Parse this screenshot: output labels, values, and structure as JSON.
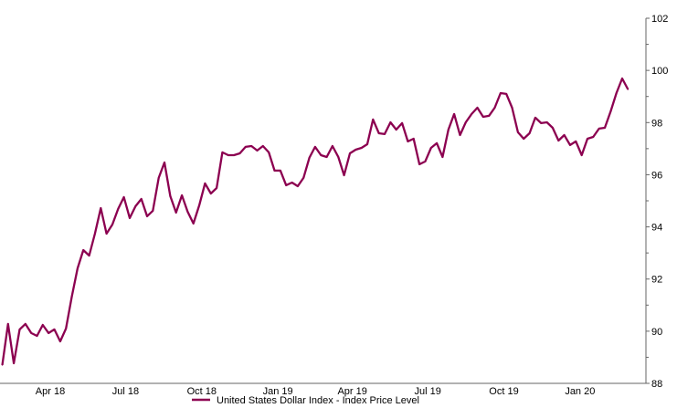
{
  "chart_data": {
    "type": "line",
    "title": "",
    "xlabel": "",
    "ylabel": "",
    "ylim": [
      88,
      102
    ],
    "yticks": [
      88,
      90,
      92,
      94,
      96,
      98,
      100,
      102
    ],
    "y_axis_side": "right",
    "grid": false,
    "legend_placement": "bottom",
    "xticks": [
      {
        "date": "2018-04-01",
        "label": "Apr 18"
      },
      {
        "date": "2018-07-01",
        "label": "Jul 18"
      },
      {
        "date": "2018-10-01",
        "label": "Oct 18"
      },
      {
        "date": "2019-01-01",
        "label": "Jan 19"
      },
      {
        "date": "2019-04-01",
        "label": "Apr 19"
      },
      {
        "date": "2019-07-01",
        "label": "Jul 19"
      },
      {
        "date": "2019-10-01",
        "label": "Oct 19"
      },
      {
        "date": "2020-01-01",
        "label": "Jan 20"
      }
    ],
    "series": [
      {
        "name": "United States Dollar Index - Index Price Level",
        "color": "#8c0050",
        "x": [
          "2018-02-02",
          "2018-02-09",
          "2018-02-16",
          "2018-02-23",
          "2018-03-02",
          "2018-03-09",
          "2018-03-16",
          "2018-03-23",
          "2018-03-30",
          "2018-04-06",
          "2018-04-13",
          "2018-04-20",
          "2018-04-27",
          "2018-05-04",
          "2018-05-11",
          "2018-05-18",
          "2018-05-25",
          "2018-06-01",
          "2018-06-08",
          "2018-06-15",
          "2018-06-22",
          "2018-06-29",
          "2018-07-06",
          "2018-07-13",
          "2018-07-20",
          "2018-07-27",
          "2018-08-03",
          "2018-08-10",
          "2018-08-17",
          "2018-08-24",
          "2018-08-31",
          "2018-09-07",
          "2018-09-14",
          "2018-09-21",
          "2018-09-28",
          "2018-10-05",
          "2018-10-12",
          "2018-10-19",
          "2018-10-26",
          "2018-11-02",
          "2018-11-09",
          "2018-11-16",
          "2018-11-23",
          "2018-11-30",
          "2018-12-07",
          "2018-12-14",
          "2018-12-21",
          "2018-12-28",
          "2019-01-04",
          "2019-01-11",
          "2019-01-18",
          "2019-01-25",
          "2019-02-01",
          "2019-02-08",
          "2019-02-15",
          "2019-02-22",
          "2019-03-01",
          "2019-03-08",
          "2019-03-15",
          "2019-03-22",
          "2019-03-29",
          "2019-04-05",
          "2019-04-12",
          "2019-04-19",
          "2019-04-26",
          "2019-05-03",
          "2019-05-10",
          "2019-05-17",
          "2019-05-24",
          "2019-05-31",
          "2019-06-07",
          "2019-06-14",
          "2019-06-21",
          "2019-06-28",
          "2019-07-05",
          "2019-07-12",
          "2019-07-19",
          "2019-07-26",
          "2019-08-02",
          "2019-08-09",
          "2019-08-16",
          "2019-08-23",
          "2019-08-30",
          "2019-09-06",
          "2019-09-13",
          "2019-09-20",
          "2019-09-27",
          "2019-10-04",
          "2019-10-11",
          "2019-10-18",
          "2019-10-25",
          "2019-11-01",
          "2019-11-08",
          "2019-11-15",
          "2019-11-22",
          "2019-11-29",
          "2019-12-06",
          "2019-12-13",
          "2019-12-20",
          "2019-12-27",
          "2020-01-03",
          "2020-01-10",
          "2020-01-17",
          "2020-01-24",
          "2020-01-31",
          "2020-02-07",
          "2020-02-14",
          "2020-02-21",
          "2020-02-28"
        ],
        "values": [
          88.7,
          90.28,
          88.77,
          90.07,
          90.28,
          89.93,
          89.82,
          90.24,
          89.93,
          90.07,
          89.61,
          90.1,
          91.33,
          92.41,
          93.11,
          92.9,
          93.74,
          94.72,
          93.74,
          94.09,
          94.69,
          95.14,
          94.34,
          94.79,
          95.07,
          94.41,
          94.62,
          95.88,
          96.47,
          95.18,
          94.55,
          95.21,
          94.58,
          94.13,
          94.83,
          95.67,
          95.28,
          95.49,
          96.86,
          96.75,
          96.75,
          96.82,
          97.07,
          97.1,
          96.93,
          97.1,
          96.86,
          96.16,
          96.16,
          95.6,
          95.7,
          95.56,
          95.88,
          96.65,
          97.07,
          96.75,
          96.68,
          97.1,
          96.68,
          95.98,
          96.82,
          96.96,
          97.03,
          97.17,
          98.12,
          97.59,
          97.56,
          98.01,
          97.73,
          97.98,
          97.28,
          97.38,
          96.4,
          96.51,
          97.03,
          97.21,
          96.68,
          97.73,
          98.33,
          97.52,
          98.01,
          98.33,
          98.57,
          98.22,
          98.26,
          98.57,
          99.13,
          99.1,
          98.57,
          97.63,
          97.38,
          97.59,
          98.19,
          97.98,
          98.01,
          97.8,
          97.31,
          97.52,
          97.14,
          97.28,
          96.75,
          97.38,
          97.45,
          97.77,
          97.8,
          98.43,
          99.13,
          99.69,
          99.27
        ]
      }
    ]
  }
}
